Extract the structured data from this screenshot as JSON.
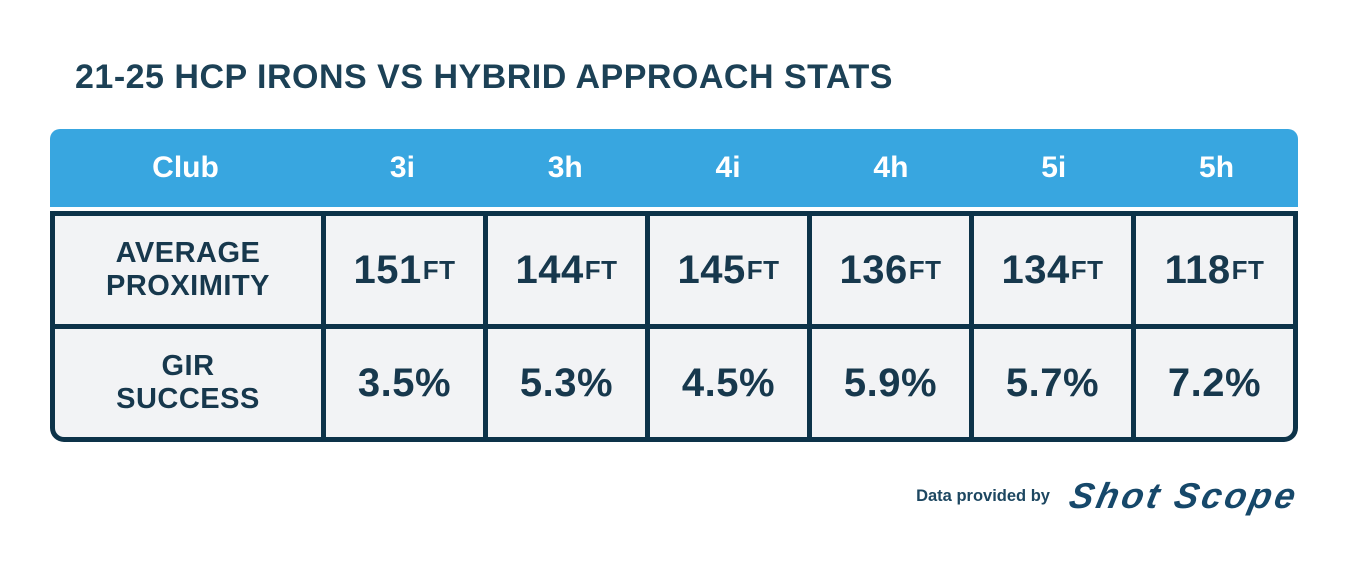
{
  "title": "21-25 HCP IRONS VS HYBRID APPROACH STATS",
  "colors": {
    "header_blue": "#38a6e0",
    "navy_border": "#0d3349",
    "cell_background": "#f2f3f5",
    "cell_text": "#17384d",
    "title_text": "#1c4156",
    "header_text": "#ffffff",
    "credit_text": "#1d4761",
    "logo_text": "#16486a",
    "page_background": "#ffffff"
  },
  "table": {
    "header": {
      "club_label": "Club",
      "columns": [
        "3i",
        "3h",
        "4i",
        "4h",
        "5i",
        "5h"
      ]
    },
    "rows": [
      {
        "label_line1": "AVERAGE",
        "label_line2": "PROXIMITY",
        "unit": "FT",
        "values": [
          "151",
          "144",
          "145",
          "136",
          "134",
          "118"
        ]
      },
      {
        "label_line1": "GIR",
        "label_line2": "SUCCESS",
        "values": [
          "3.5%",
          "5.3%",
          "4.5%",
          "5.9%",
          "5.7%",
          "7.2%"
        ]
      }
    ]
  },
  "footer": {
    "credit": "Data provided by",
    "logo": "Shot Scope"
  },
  "chart_data": {
    "type": "table",
    "title": "21-25 HCP IRONS VS HYBRID APPROACH STATS",
    "columns": [
      "Club",
      "3i",
      "3h",
      "4i",
      "4h",
      "5i",
      "5h"
    ],
    "rows": [
      [
        "AVERAGE PROXIMITY",
        "151FT",
        "144FT",
        "145FT",
        "136FT",
        "134FT",
        "118FT"
      ],
      [
        "GIR SUCCESS",
        "3.5%",
        "5.3%",
        "4.5%",
        "5.9%",
        "5.7%",
        "7.2%"
      ]
    ],
    "series": [
      {
        "name": "Average Proximity (ft)",
        "values": [
          151,
          144,
          145,
          136,
          134,
          118
        ]
      },
      {
        "name": "GIR Success (%)",
        "values": [
          3.5,
          5.3,
          4.5,
          5.9,
          5.7,
          7.2
        ]
      }
    ],
    "categories": [
      "3i",
      "3h",
      "4i",
      "4h",
      "5i",
      "5h"
    ]
  }
}
